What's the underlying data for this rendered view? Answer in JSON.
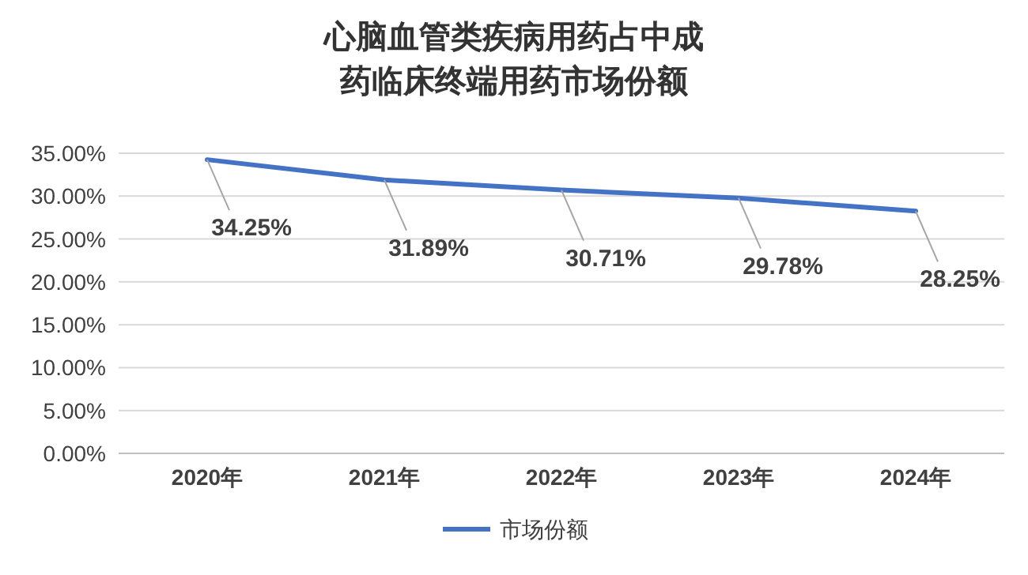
{
  "chart_data": {
    "type": "line",
    "title": "心脑血管类疾病用药占中成药临床终端用药市场份额",
    "categories": [
      "2020年",
      "2021年",
      "2022年",
      "2023年",
      "2024年"
    ],
    "series": [
      {
        "name": "市场份额",
        "color": "#4472c4",
        "values": [
          34.25,
          31.89,
          30.71,
          29.78,
          28.25
        ],
        "value_labels": [
          "34.25%",
          "31.89%",
          "30.71%",
          "29.78%",
          "28.25%"
        ]
      }
    ],
    "ylim": [
      0,
      35
    ],
    "yticks": [
      {
        "value": 0,
        "label": "0.00%"
      },
      {
        "value": 5,
        "label": "5.00%"
      },
      {
        "value": 10,
        "label": "10.00%"
      },
      {
        "value": 15,
        "label": "15.00%"
      },
      {
        "value": 20,
        "label": "20.00%"
      },
      {
        "value": 25,
        "label": "25.00%"
      },
      {
        "value": 30,
        "label": "30.00%"
      },
      {
        "value": 35,
        "label": "35.00%"
      }
    ],
    "grid": "y",
    "legend": "bottom",
    "marker": "none",
    "line_style": "solid"
  }
}
